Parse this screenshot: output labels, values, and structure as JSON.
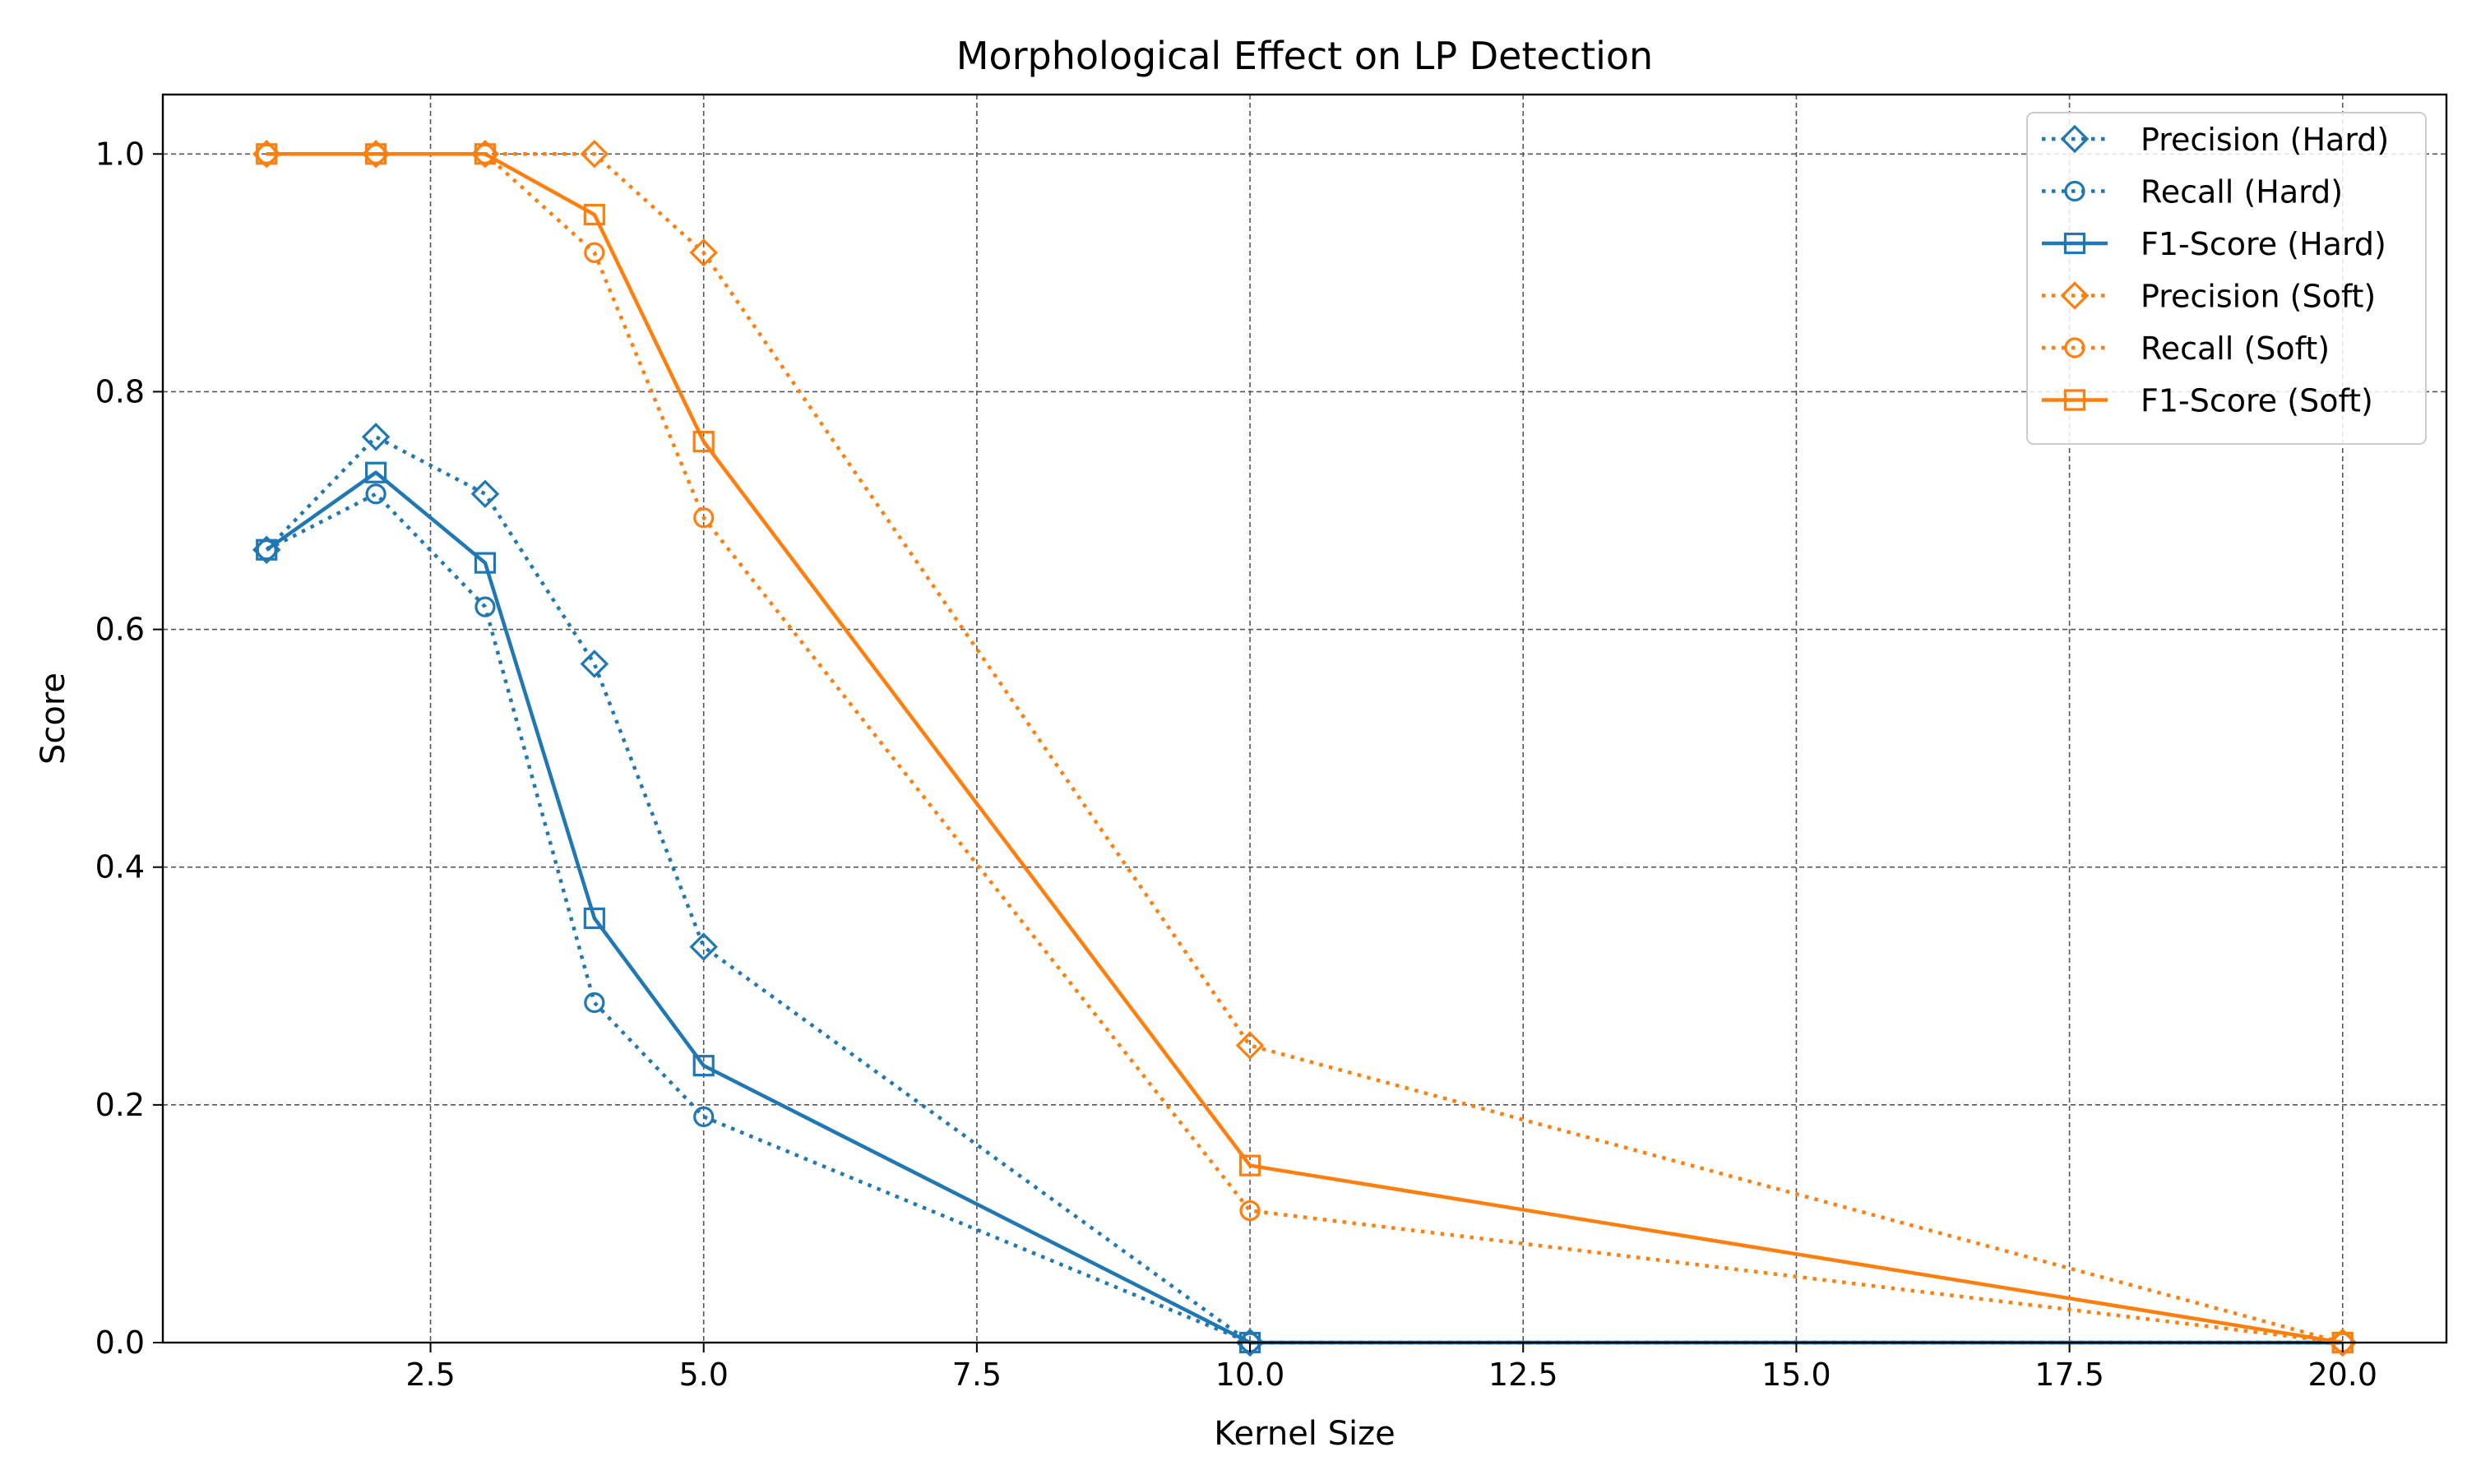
{
  "chart_data": {
    "type": "line",
    "title": "Morphological Effect on LP Detection",
    "xlabel": "Kernel Size",
    "ylabel": "Score",
    "x": [
      1,
      2,
      3,
      4,
      5,
      10,
      20
    ],
    "xlim": [
      0.05,
      20.95
    ],
    "ylim": [
      0,
      1.05
    ],
    "xticks": [
      2.5,
      5.0,
      7.5,
      10.0,
      12.5,
      15.0,
      17.5,
      20.0
    ],
    "yticks": [
      0.0,
      0.2,
      0.4,
      0.6,
      0.8,
      1.0
    ],
    "xtick_labels": [
      "2.5",
      "5.0",
      "7.5",
      "10.0",
      "12.5",
      "15.0",
      "17.5",
      "20.0"
    ],
    "ytick_labels": [
      "0.0",
      "0.2",
      "0.4",
      "0.6",
      "0.8",
      "1.0"
    ],
    "grid": true,
    "legend_position": "top-right",
    "series": [
      {
        "name": "Precision (Hard)",
        "color": "#1f77b4",
        "linestyle": "dotted",
        "marker": "diamond",
        "values": [
          0.667,
          0.762,
          0.714,
          0.571,
          0.333,
          0.0,
          0.0
        ]
      },
      {
        "name": "Recall (Hard)",
        "color": "#1f77b4",
        "linestyle": "dotted",
        "marker": "circle",
        "values": [
          0.667,
          0.714,
          0.619,
          0.286,
          0.19,
          0.0,
          0.0
        ]
      },
      {
        "name": "F1-Score (Hard)",
        "color": "#1f77b4",
        "linestyle": "solid",
        "marker": "square",
        "values": [
          0.667,
          0.732,
          0.656,
          0.357,
          0.233,
          0.0,
          0.0
        ]
      },
      {
        "name": "Precision (Soft)",
        "color": "#ff7f0e",
        "linestyle": "dotted",
        "marker": "diamond",
        "values": [
          1.0,
          1.0,
          1.0,
          1.0,
          0.917,
          0.25,
          0.0
        ]
      },
      {
        "name": "Recall (Soft)",
        "color": "#ff7f0e",
        "linestyle": "dotted",
        "marker": "circle",
        "values": [
          1.0,
          1.0,
          1.0,
          0.917,
          0.694,
          0.111,
          0.0
        ]
      },
      {
        "name": "F1-Score (Soft)",
        "color": "#ff7f0e",
        "linestyle": "solid",
        "marker": "square",
        "values": [
          1.0,
          1.0,
          1.0,
          0.949,
          0.758,
          0.149,
          0.0
        ]
      }
    ]
  }
}
